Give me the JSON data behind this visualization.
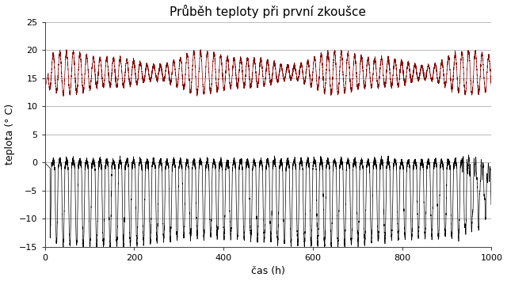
{
  "title": "Průběh teploty při první zkoušce",
  "xlabel": "čas (h)",
  "ylabel": "teplota (° C)",
  "xlim": [
    0,
    1000
  ],
  "ylim": [
    -15,
    25
  ],
  "xticks": [
    0,
    200,
    400,
    600,
    800,
    1000
  ],
  "yticks": [
    -15,
    -10,
    -5,
    0,
    5,
    10,
    15,
    20,
    25
  ],
  "red_mean": 16.0,
  "red_amp": 2.5,
  "red_period": 15.0,
  "red_color": "#800000",
  "black_mean": -1.0,
  "black_amp": 13.0,
  "black_period": 15.0,
  "black_color": "#000000",
  "bg_color": "#ffffff",
  "grid_color": "#b0b0b0",
  "title_fontsize": 11,
  "label_fontsize": 9,
  "tick_fontsize": 8,
  "n_points": 8000,
  "duration": 1000
}
